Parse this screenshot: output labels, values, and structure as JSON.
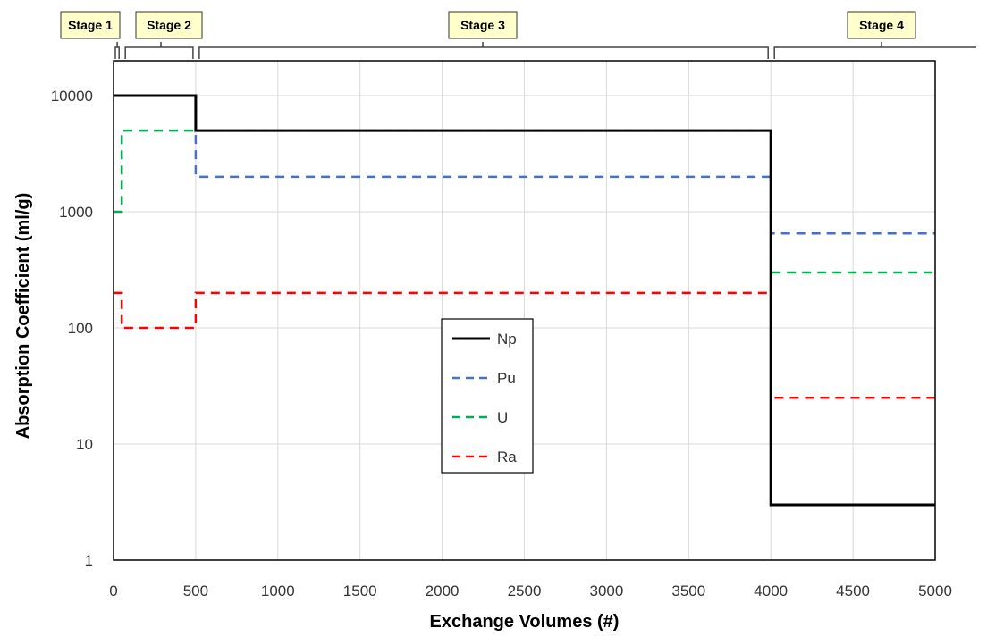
{
  "chart_data": {
    "type": "line",
    "xlabel": "Exchange Volumes (#)",
    "ylabel": "Absorption Coefficient (ml/g)",
    "xlim": [
      0,
      5000
    ],
    "ylim": [
      1,
      20000
    ],
    "yscale": "log",
    "grid": true,
    "x_ticks": [
      0,
      500,
      1000,
      1500,
      2000,
      2500,
      3000,
      3500,
      4000,
      4500,
      5000
    ],
    "y_ticks": [
      1,
      10,
      100,
      1000,
      10000
    ],
    "x_tick_labels": [
      "0",
      "500",
      "1000",
      "1500",
      "2000",
      "2500",
      "3000",
      "3500",
      "4000",
      "4500",
      "5000"
    ],
    "y_tick_labels": [
      "1",
      "10",
      "100",
      "1000",
      "10000"
    ],
    "legend_position": "center",
    "stages": [
      {
        "label": "Stage 1",
        "x_start": 0,
        "x_end": 50
      },
      {
        "label": "Stage 2",
        "x_start": 50,
        "x_end": 500
      },
      {
        "label": "Stage 3",
        "x_start": 500,
        "x_end": 4000
      },
      {
        "label": "Stage 4",
        "x_start": 4000,
        "x_end": 5000
      }
    ],
    "series": [
      {
        "name": "Np",
        "color": "#000000",
        "dash": "solid",
        "x": [
          0,
          500,
          500,
          4000,
          4000,
          5000
        ],
        "y": [
          10000,
          10000,
          5000,
          5000,
          3,
          3
        ]
      },
      {
        "name": "Pu",
        "color": "#4472c4",
        "dash": "dashed",
        "x": [
          0,
          500,
          500,
          4000,
          4000,
          5000
        ],
        "y": [
          10000,
          10000,
          2000,
          2000,
          650,
          650
        ]
      },
      {
        "name": "U",
        "color": "#00b050",
        "dash": "dashed",
        "x": [
          0,
          50,
          50,
          4000,
          4000,
          5000
        ],
        "y": [
          1000,
          1000,
          5000,
          5000,
          300,
          300
        ]
      },
      {
        "name": "Ra",
        "color": "#ff0000",
        "dash": "dashed",
        "x": [
          0,
          50,
          50,
          500,
          500,
          4000,
          4000,
          5000
        ],
        "y": [
          200,
          200,
          100,
          100,
          200,
          200,
          25,
          25
        ]
      }
    ]
  }
}
